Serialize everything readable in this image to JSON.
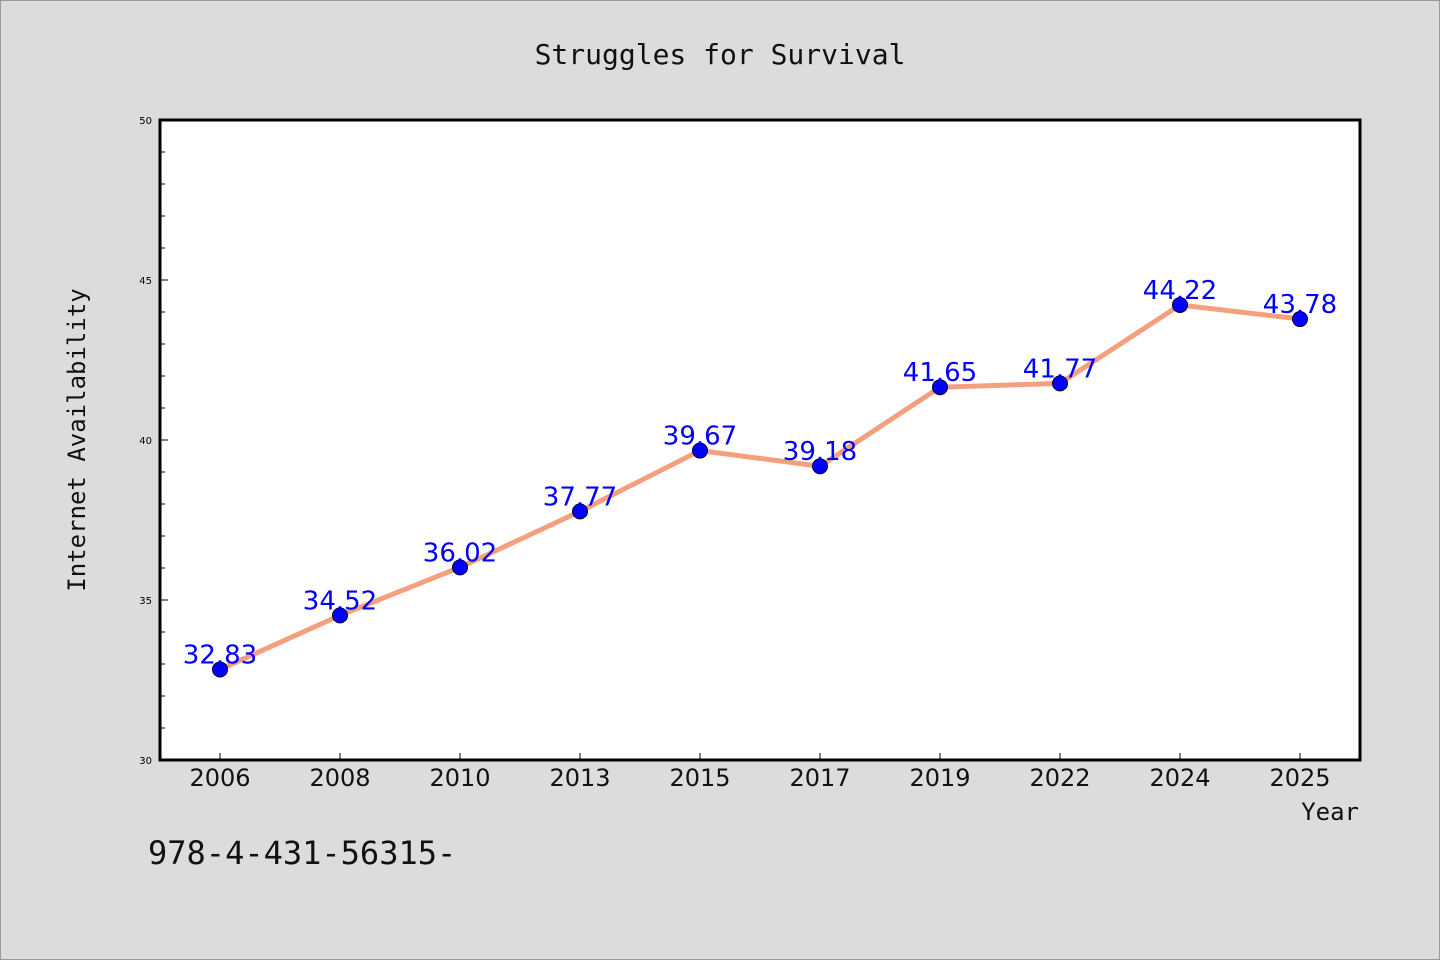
{
  "chart_data": {
    "type": "line",
    "title": "Struggles for Survival",
    "xlabel": "Year",
    "ylabel": "Internet Availability",
    "categories": [
      "2006",
      "2008",
      "2010",
      "2013",
      "2015",
      "2017",
      "2019",
      "2022",
      "2024",
      "2025"
    ],
    "values": [
      32.83,
      34.52,
      36.02,
      37.77,
      39.67,
      39.18,
      41.65,
      41.77,
      44.22,
      43.78
    ],
    "value_labels": [
      "32.83",
      "34.52",
      "36.02",
      "37.77",
      "39.67",
      "39.18",
      "41.65",
      "41.77",
      "44.22",
      "43.78"
    ],
    "ylim": [
      30,
      50
    ],
    "y_ticks": [
      30,
      35,
      40,
      45,
      50
    ],
    "y_tick_labels": [
      "30",
      "35",
      "40",
      "45",
      "50"
    ],
    "grid": false,
    "legend": "none",
    "colors": {
      "line": "#f4a07f",
      "marker": "#0000ff",
      "value_label": "#0000ff",
      "plot_background": "#ffffff",
      "page_background": "#dcdcdc"
    }
  },
  "footnote": "978-4-431-56315-"
}
